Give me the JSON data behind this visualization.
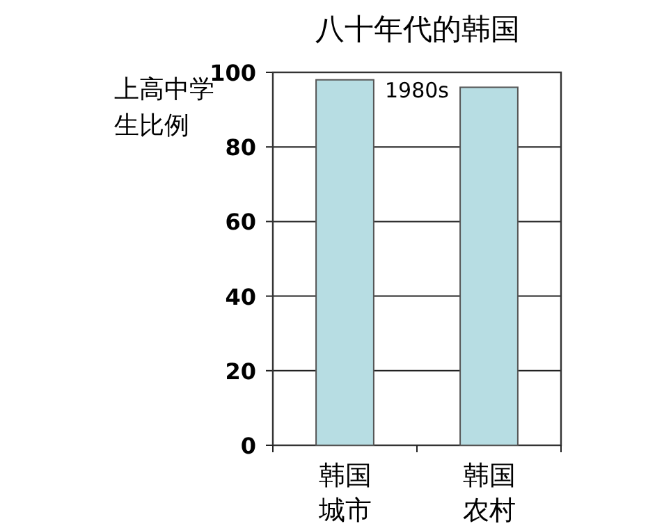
{
  "chart_data": {
    "type": "bar",
    "title": "八十年代的韩国",
    "ylabel": "上高中学生比例",
    "categories": [
      "韩国城市",
      "韩国农村"
    ],
    "values": [
      98,
      96
    ],
    "color": "#b7dde3",
    "ylim": [
      0,
      100
    ],
    "yticks": [
      0,
      20,
      40,
      60,
      80,
      100
    ],
    "grid": "y",
    "annotations": [
      "1980s"
    ]
  }
}
